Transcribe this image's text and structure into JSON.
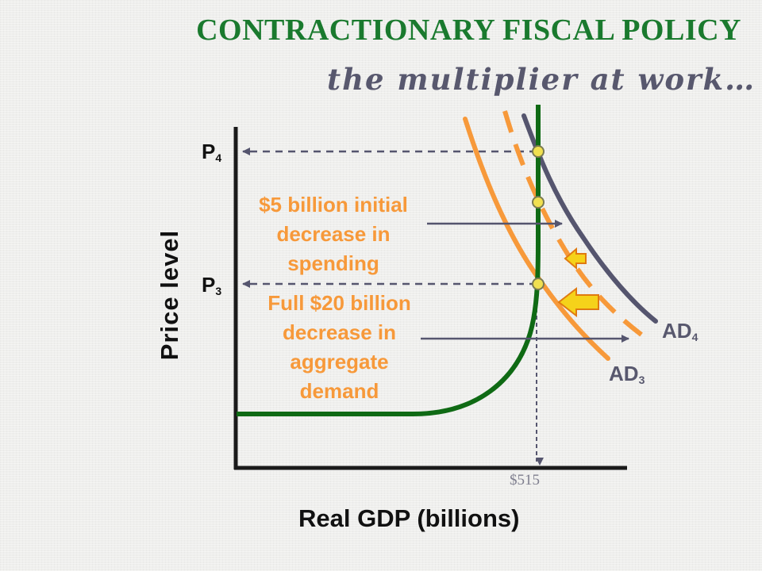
{
  "title": "CONTRACTIONARY FISCAL POLICY",
  "subtitle": "the multiplier at work…",
  "axes": {
    "y_label": "Price level",
    "x_label": "Real GDP (billions)"
  },
  "price_labels": {
    "p4": {
      "base": "P",
      "sub": "4"
    },
    "p3": {
      "base": "P",
      "sub": "3"
    }
  },
  "gdp_tick": "$515",
  "curves": {
    "ad4": {
      "base": "AD",
      "sub": "4"
    },
    "ad3": {
      "base": "AD",
      "sub": "3"
    }
  },
  "annotations": {
    "initial_decrease": [
      "$5 billion initial",
      "decrease in",
      "spending"
    ],
    "full_decrease": [
      "Full $20 billion",
      "decrease in",
      "aggregate",
      "demand"
    ]
  },
  "colors": {
    "title_green": "#1a7a2e",
    "as_curve": "#0f6a14",
    "ad4_curve": "#55556e",
    "ad3_curve": "#f7993a",
    "arrow": "#55556e",
    "shift_arrow_fill": "#f5d21a",
    "shift_arrow_edge": "#e07a10",
    "point_fill": "#f0e050"
  }
}
